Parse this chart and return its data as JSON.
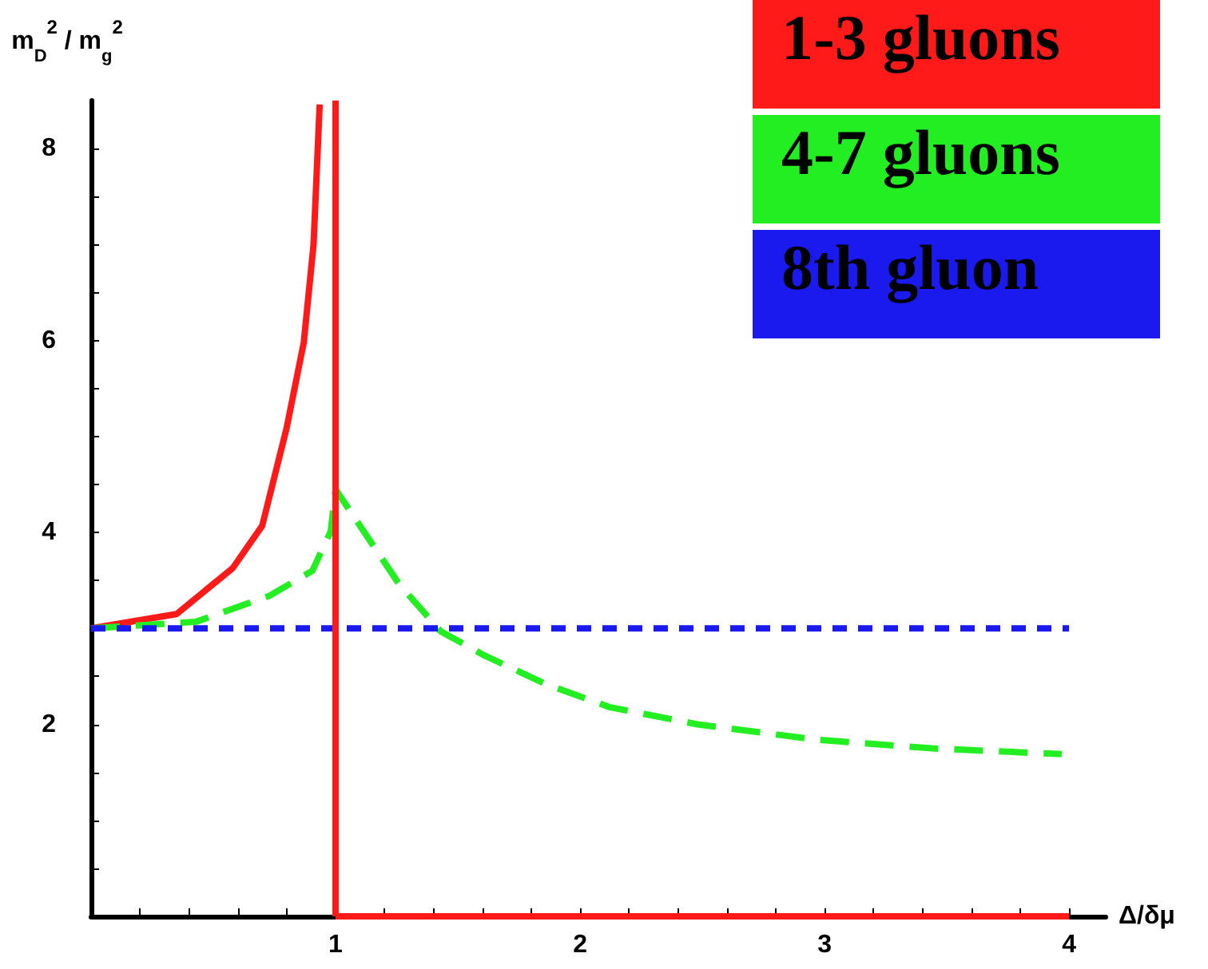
{
  "chart_data": {
    "type": "line",
    "xlabel": "Δ/δμ",
    "ylabel": "m$_{D}$$^{2}$ / m$_{g}$$^{2}$",
    "xlim": [
      0,
      4.15
    ],
    "ylim": [
      0,
      8.5
    ],
    "xticks": [
      {
        "value": 0.2,
        "label": null
      },
      {
        "value": 0.4,
        "label": null
      },
      {
        "value": 0.6,
        "label": null
      },
      {
        "value": 0.8,
        "label": null
      },
      1,
      {
        "value": 1.2,
        "label": null
      },
      {
        "value": 1.4,
        "label": null
      },
      {
        "value": 1.6,
        "label": null
      },
      {
        "value": 1.8,
        "label": null
      },
      2,
      {
        "value": 2.2,
        "label": null
      },
      {
        "value": 2.4,
        "label": null
      },
      {
        "value": 2.6,
        "label": null
      },
      {
        "value": 2.8,
        "label": null
      },
      3,
      {
        "value": 3.2,
        "label": null
      },
      {
        "value": 3.4,
        "label": null
      },
      {
        "value": 3.6,
        "label": null
      },
      {
        "value": 3.8,
        "label": null
      },
      4
    ],
    "yticks": [
      {
        "value": 0.5,
        "label": null
      },
      {
        "value": 1,
        "label": null
      },
      {
        "value": 1.5,
        "label": null
      },
      2,
      {
        "value": 2.5,
        "label": null
      },
      {
        "value": 3,
        "label": null
      },
      {
        "value": 3.5,
        "label": null
      },
      4,
      {
        "value": 4.5,
        "label": null
      },
      {
        "value": 5,
        "label": null
      },
      {
        "value": 5.5,
        "label": null
      },
      6,
      {
        "value": 6.5,
        "label": null
      },
      {
        "value": 7,
        "label": null
      },
      {
        "value": 7.5,
        "label": null
      },
      8
    ],
    "grid": false,
    "legend": "top right",
    "marker": "none",
    "series": [
      {
        "name": "1-3 gluons",
        "color": "#ff1a1a",
        "line_style": "solid",
        "x": [
          0,
          0.35,
          0.58,
          0.7,
          0.8,
          0.87,
          0.91,
          0.935,
          0.97,
          1,
          4
        ],
        "values": [
          3,
          3.15,
          3.63,
          4.07,
          5.09,
          5.98,
          7.0,
          8.46,
          null,
          0,
          0
        ]
      },
      {
        "name": "4-7 gluons",
        "color": "#22ee22",
        "line_style": "dashed",
        "x": [
          0,
          0.43,
          0.73,
          0.905,
          0.98,
          1.0,
          1.26,
          1.43,
          1.6,
          1.86,
          2.12,
          2.48,
          2.97,
          3.44,
          3.97
        ],
        "values": [
          3,
          3.07,
          3.34,
          3.6,
          4.01,
          4.45,
          3.46,
          2.97,
          2.73,
          2.42,
          2.18,
          2.0,
          1.84,
          1.75,
          1.69
        ]
      },
      {
        "name": "8th gluon",
        "color": "#1a1aee",
        "line_style": "dotted",
        "x": [
          0,
          4
        ],
        "values": [
          3,
          3
        ]
      }
    ],
    "ref_lines": [
      {
        "axis": "x",
        "value": 1,
        "color": "#ff1a1a",
        "line_style": "solid"
      }
    ]
  }
}
